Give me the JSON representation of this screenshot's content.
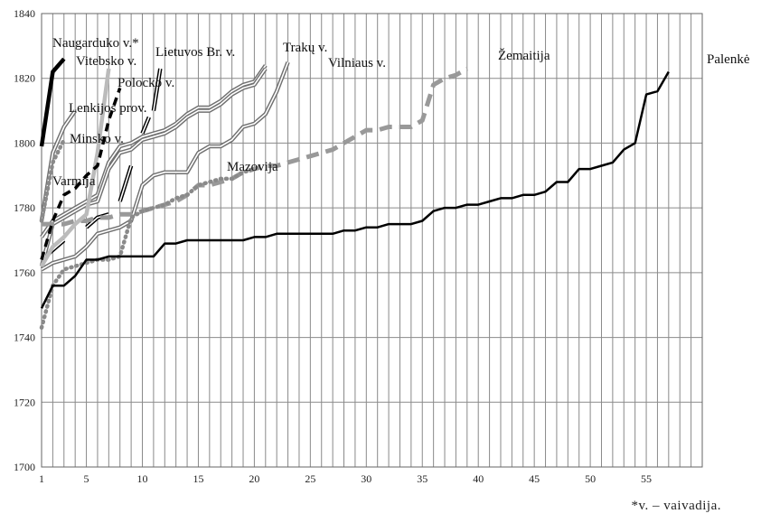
{
  "chart_data": {
    "type": "line",
    "title": "",
    "xlabel": "",
    "ylabel": "",
    "xlim": [
      1,
      60
    ],
    "ylim": [
      1700,
      1840
    ],
    "x_ticks": [
      1,
      5,
      10,
      15,
      20,
      25,
      30,
      35,
      40,
      45,
      50,
      55
    ],
    "y_ticks": [
      1700,
      1720,
      1740,
      1760,
      1780,
      1800,
      1820,
      1840
    ],
    "grid": "vertical lines at every integer x, horizontal lines at every 20 on y",
    "legend": "none; series names placed at line ends",
    "series": [
      {
        "name": "Naugarduko v.*",
        "style": "thick-black",
        "x": [
          1,
          2,
          3
        ],
        "y": [
          1799,
          1822,
          1826
        ]
      },
      {
        "name": "Vitebsko v.",
        "style": "thick-lightgray",
        "x": [
          1,
          2,
          3,
          4,
          5,
          6,
          7
        ],
        "y": [
          1762,
          1768,
          1771,
          1775,
          1778,
          1797,
          1823
        ]
      },
      {
        "name": "Lietuvos Br. v.",
        "style": "double-gray",
        "x": [
          1,
          2,
          3,
          4,
          5,
          6,
          7,
          8,
          9,
          10,
          11,
          12,
          13,
          14,
          15,
          16,
          17,
          18,
          19,
          20,
          21
        ],
        "y": [
          1771,
          1776,
          1778,
          1780,
          1782,
          1784,
          1794,
          1799,
          1800,
          1802,
          1803,
          1804,
          1806,
          1809,
          1811,
          1811,
          1813,
          1816,
          1818,
          1819,
          1824
        ]
      },
      {
        "name": "Trakų v.",
        "style": "double-gray",
        "x": [
          1,
          2,
          3,
          4,
          5,
          6,
          7,
          8,
          9,
          10,
          11,
          12,
          13,
          14,
          15,
          16,
          17,
          18,
          19,
          20,
          21
        ],
        "y": [
          1762,
          1775,
          1777,
          1779,
          1781,
          1782,
          1792,
          1797,
          1798,
          1801,
          1802,
          1803,
          1805,
          1808,
          1810,
          1810,
          1812,
          1815,
          1817,
          1818,
          1823
        ]
      },
      {
        "name": "Vilniaus v.",
        "style": "double-gray",
        "x": [
          1,
          2,
          3,
          4,
          5,
          6,
          7,
          8,
          9,
          10,
          11,
          12,
          13,
          14,
          15,
          16,
          17,
          18,
          19,
          20,
          21,
          22,
          23
        ],
        "y": [
          1761,
          1763,
          1764,
          1765,
          1768,
          1772,
          1773,
          1774,
          1776,
          1787,
          1790,
          1791,
          1791,
          1791,
          1797,
          1799,
          1799,
          1801,
          1805,
          1806,
          1809,
          1816,
          1825
        ]
      },
      {
        "name": "Polocko v.",
        "style": "double-black",
        "x": [
          8,
          9
        ],
        "y": [
          1782,
          1793
        ]
      },
      {
        "name": "Lenkijos prov.",
        "style": "double-gray",
        "x": [
          1,
          2,
          3,
          4
        ],
        "y": [
          1776,
          1797,
          1805,
          1810
        ]
      },
      {
        "name": "Minsko v.",
        "style": "dotted-gray",
        "x": [
          1,
          2,
          3
        ],
        "y": [
          1776,
          1794,
          1801
        ]
      },
      {
        "name": "Varmija",
        "style": "dashed-black",
        "x": [
          1,
          2,
          3,
          4,
          5,
          6,
          7,
          8
        ],
        "y": [
          1764,
          1776,
          1784,
          1786,
          1790,
          1793,
          1807,
          1817
        ]
      },
      {
        "name": "Mazovija",
        "style": "dotted-gray",
        "x": [
          1,
          2,
          3,
          4,
          5,
          6,
          7,
          8,
          9,
          10,
          11,
          12,
          13,
          14,
          15,
          16,
          17,
          18,
          19,
          20
        ],
        "y": [
          1743,
          1756,
          1761,
          1762,
          1763,
          1764,
          1764,
          1765,
          1777,
          1779,
          1780,
          1781,
          1783,
          1784,
          1787,
          1788,
          1789,
          1789,
          1791,
          1792
        ]
      },
      {
        "name": "Žemaitija",
        "style": "dashed-gray",
        "x": [
          1,
          2,
          3,
          4,
          5,
          6,
          7,
          8,
          9,
          10,
          11,
          12,
          13,
          14,
          15,
          16,
          17,
          18,
          19,
          20,
          21,
          22,
          23,
          24,
          25,
          26,
          27,
          28,
          29,
          30,
          31,
          32,
          33,
          34,
          35,
          36,
          37,
          38,
          39
        ],
        "y": [
          1775,
          1775,
          1775,
          1776,
          1776,
          1777,
          1777,
          1778,
          1778,
          1779,
          1780,
          1781,
          1782,
          1784,
          1787,
          1787,
          1788,
          1789,
          1791,
          1792,
          1793,
          1793,
          1794,
          1795,
          1796,
          1797,
          1798,
          1800,
          1802,
          1804,
          1804,
          1805,
          1805,
          1805,
          1807,
          1818,
          1820,
          1821,
          1823
        ]
      },
      {
        "name": "Palenkė",
        "style": "solid-black",
        "x": [
          1,
          2,
          3,
          4,
          5,
          6,
          7,
          8,
          9,
          10,
          11,
          12,
          13,
          14,
          15,
          16,
          17,
          18,
          19,
          20,
          21,
          22,
          23,
          24,
          25,
          26,
          27,
          28,
          29,
          30,
          31,
          32,
          33,
          34,
          35,
          36,
          37,
          38,
          39,
          40,
          41,
          42,
          43,
          44,
          45,
          46,
          47,
          48,
          49,
          50,
          51,
          52,
          53,
          54,
          55,
          56,
          57
        ],
        "y": [
          1749,
          1756,
          1756,
          1759,
          1764,
          1764,
          1765,
          1765,
          1765,
          1765,
          1765,
          1769,
          1769,
          1770,
          1770,
          1770,
          1770,
          1770,
          1770,
          1771,
          1771,
          1772,
          1772,
          1772,
          1772,
          1772,
          1772,
          1773,
          1773,
          1774,
          1774,
          1775,
          1775,
          1775,
          1776,
          1779,
          1780,
          1780,
          1781,
          1781,
          1782,
          1783,
          1783,
          1784,
          1784,
          1785,
          1788,
          1788,
          1792,
          1792,
          1793,
          1794,
          1798,
          1800,
          1815,
          1816,
          1822
        ]
      }
    ],
    "annotations": [
      "Naugarduko v.*",
      "Vitebsko v.",
      "Lietuvos Br. v.",
      "Trakų v.",
      "Vilniaus v.",
      "Polocko v.",
      "Lenkijos prov.",
      "Minsko v.",
      "Varmija",
      "Mazovija",
      "Žemaitija",
      "Palenkė"
    ]
  },
  "footnote": "*v. – vaivadija."
}
